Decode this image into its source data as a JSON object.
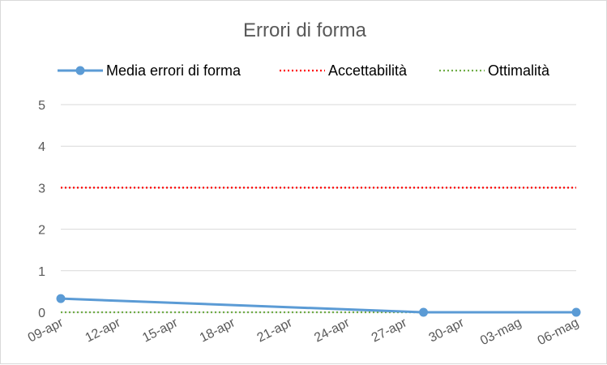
{
  "chart_data": {
    "type": "line",
    "title": "Errori di forma",
    "xlabel": "",
    "ylabel": "",
    "x_ticks": [
      "09-apr",
      "12-apr",
      "15-apr",
      "18-apr",
      "21-apr",
      "24-apr",
      "27-apr",
      "30-apr",
      "03-mag",
      "06-mag"
    ],
    "y_ticks": [
      "0",
      "1",
      "2",
      "3",
      "4",
      "5"
    ],
    "xlim": [
      "09-apr",
      "06-mag"
    ],
    "ylim": [
      0,
      5
    ],
    "grid": true,
    "legend_position": "top",
    "series": [
      {
        "name": "Media errori di forma",
        "color": "#5b9bd5",
        "style": "solid-with-markers",
        "points": [
          {
            "x": "09-apr",
            "y": 0.33
          },
          {
            "x": "28-apr",
            "y": 0
          },
          {
            "x": "06-mag",
            "y": 0
          }
        ]
      },
      {
        "name": "Accettabilità",
        "color": "#ff0000",
        "style": "dotted",
        "points": [
          {
            "x": "09-apr",
            "y": 3
          },
          {
            "x": "06-mag",
            "y": 3
          }
        ]
      },
      {
        "name": "Ottimalità",
        "color": "#70ad47",
        "style": "dotted",
        "points": [
          {
            "x": "09-apr",
            "y": 0
          },
          {
            "x": "06-mag",
            "y": 0
          }
        ]
      }
    ]
  }
}
